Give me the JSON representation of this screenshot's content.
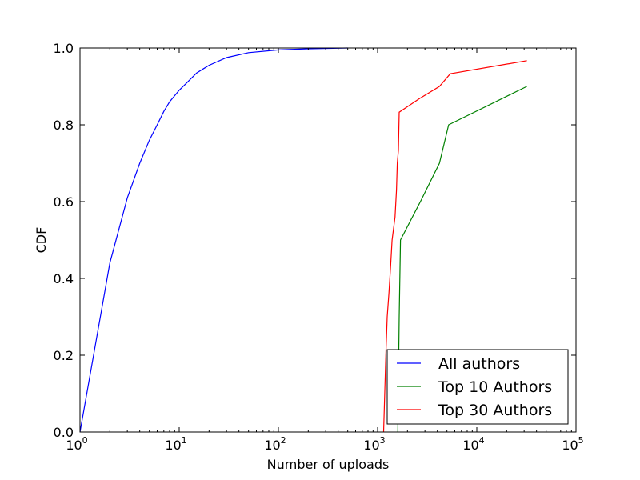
{
  "chart_data": {
    "type": "line",
    "xlabel": "Number of uploads",
    "ylabel": "CDF",
    "xscale": "log",
    "xlim": [
      1,
      100000
    ],
    "ylim": [
      0,
      1.0
    ],
    "grid": false,
    "legend_position": "lower-right",
    "x_ticks": [
      {
        "value": 1,
        "base": "10",
        "exp": "0"
      },
      {
        "value": 10,
        "base": "10",
        "exp": "1"
      },
      {
        "value": 100,
        "base": "10",
        "exp": "2"
      },
      {
        "value": 1000,
        "base": "10",
        "exp": "3"
      },
      {
        "value": 10000,
        "base": "10",
        "exp": "4"
      },
      {
        "value": 100000,
        "base": "10",
        "exp": "5"
      }
    ],
    "y_ticks": [
      {
        "value": 0.0,
        "label": "0.0"
      },
      {
        "value": 0.2,
        "label": "0.2"
      },
      {
        "value": 0.4,
        "label": "0.4"
      },
      {
        "value": 0.6,
        "label": "0.6"
      },
      {
        "value": 0.8,
        "label": "0.8"
      },
      {
        "value": 1.0,
        "label": "1.0"
      }
    ],
    "series": [
      {
        "name": "All authors",
        "color": "#0000ff",
        "points": [
          [
            1,
            0.0
          ],
          [
            2,
            0.44
          ],
          [
            3,
            0.61
          ],
          [
            4,
            0.7
          ],
          [
            5,
            0.76
          ],
          [
            6,
            0.8
          ],
          [
            7,
            0.835
          ],
          [
            8,
            0.86
          ],
          [
            10,
            0.89
          ],
          [
            12,
            0.91
          ],
          [
            15,
            0.935
          ],
          [
            20,
            0.955
          ],
          [
            30,
            0.975
          ],
          [
            50,
            0.988
          ],
          [
            100,
            0.995
          ],
          [
            200,
            0.998
          ],
          [
            500,
            1.0
          ]
        ]
      },
      {
        "name": "Top 10 Authors",
        "color": "#008000",
        "points": [
          [
            1600,
            0.0
          ],
          [
            1650,
            0.3
          ],
          [
            1700,
            0.5
          ],
          [
            2700,
            0.6
          ],
          [
            4200,
            0.7
          ],
          [
            5200,
            0.8
          ],
          [
            32000,
            0.9
          ]
        ]
      },
      {
        "name": "Top 30 Authors",
        "color": "#ff0000",
        "points": [
          [
            1150,
            0.0
          ],
          [
            1180,
            0.1
          ],
          [
            1210,
            0.2
          ],
          [
            1250,
            0.3
          ],
          [
            1300,
            0.36
          ],
          [
            1350,
            0.43
          ],
          [
            1400,
            0.5
          ],
          [
            1500,
            0.56
          ],
          [
            1550,
            0.63
          ],
          [
            1580,
            0.7
          ],
          [
            1620,
            0.733
          ],
          [
            1650,
            0.833
          ],
          [
            2600,
            0.867
          ],
          [
            4200,
            0.9
          ],
          [
            5400,
            0.933
          ],
          [
            32000,
            0.967
          ]
        ]
      }
    ]
  }
}
